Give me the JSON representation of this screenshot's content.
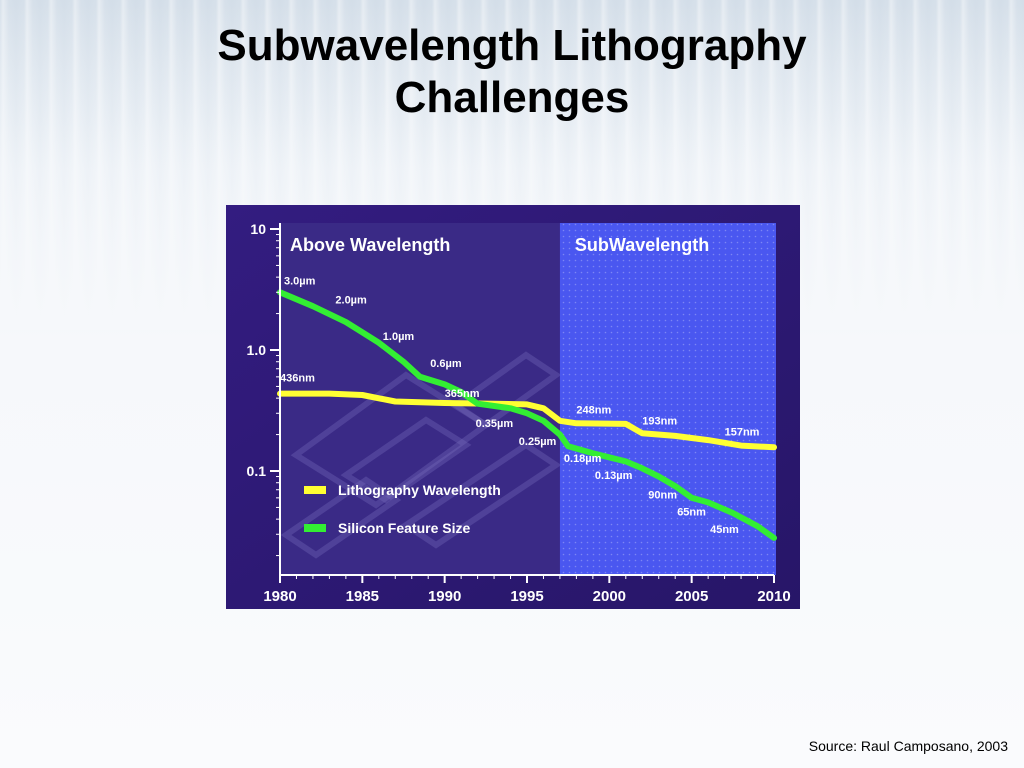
{
  "slide": {
    "title_line1": "Subwavelength Lithography",
    "title_line2": "Challenges",
    "source": "Source: Raul Camposano, 2003"
  },
  "colors": {
    "panel_bg": "#2f1a78",
    "plot_bg": "#3a2a86",
    "subwavelength_region": "#4a57f0",
    "lithography_line": "#ffff33",
    "silicon_line": "#33ee33",
    "text": "#ffffff"
  },
  "chart_data": {
    "type": "line",
    "x_type": "year",
    "y_scale": "log",
    "xlim": [
      1980,
      2010
    ],
    "ylim": [
      0.02,
      10
    ],
    "x_ticks": [
      "1980",
      "1985",
      "1990",
      "1995",
      "2000",
      "2005",
      "2010"
    ],
    "y_ticks": [
      {
        "value": 10,
        "label": "10"
      },
      {
        "value": 1,
        "label": "1.0"
      },
      {
        "value": 0.1,
        "label": "0.1"
      }
    ],
    "regions": [
      {
        "label": "Above Wavelength",
        "x_start": 1980,
        "x_end": 1997
      },
      {
        "label": "SubWavelength",
        "x_start": 1997,
        "x_end": 2010
      }
    ],
    "legend": {
      "placement": "bottom-left",
      "items": [
        "Lithography Wavelength",
        "Silicon Feature Size"
      ]
    },
    "series": [
      {
        "name": "Lithography Wavelength",
        "color": "#ffff33",
        "points": [
          [
            1980,
            0.436
          ],
          [
            1983,
            0.436
          ],
          [
            1985,
            0.425
          ],
          [
            1987,
            0.375
          ],
          [
            1990,
            0.365
          ],
          [
            1993,
            0.36
          ],
          [
            1995,
            0.355
          ],
          [
            1996,
            0.33
          ],
          [
            1997,
            0.26
          ],
          [
            1998,
            0.248
          ],
          [
            2001,
            0.245
          ],
          [
            2002,
            0.205
          ],
          [
            2004,
            0.195
          ],
          [
            2006,
            0.18
          ],
          [
            2008,
            0.162
          ],
          [
            2010,
            0.157
          ]
        ],
        "labels": [
          {
            "x": 1980,
            "y": 0.436,
            "text": "436nm"
          },
          {
            "x": 1990,
            "y": 0.365,
            "text": "365nm"
          },
          {
            "x": 1998,
            "y": 0.248,
            "text": "248nm"
          },
          {
            "x": 2002,
            "y": 0.193,
            "text": "193nm"
          },
          {
            "x": 2007,
            "y": 0.157,
            "text": "157nm"
          }
        ]
      },
      {
        "name": "Silicon Feature Size",
        "color": "#33ee33",
        "points": [
          [
            1980,
            3.0
          ],
          [
            1982,
            2.3
          ],
          [
            1984,
            1.7
          ],
          [
            1985,
            1.4
          ],
          [
            1986,
            1.15
          ],
          [
            1987.5,
            0.8
          ],
          [
            1988.5,
            0.6
          ],
          [
            1990,
            0.52
          ],
          [
            1991,
            0.45
          ],
          [
            1992,
            0.36
          ],
          [
            1994,
            0.33
          ],
          [
            1995,
            0.3
          ],
          [
            1996,
            0.26
          ],
          [
            1997,
            0.2
          ],
          [
            1997.5,
            0.16
          ],
          [
            1999,
            0.14
          ],
          [
            2001,
            0.12
          ],
          [
            2002,
            0.105
          ],
          [
            2003,
            0.09
          ],
          [
            2004,
            0.075
          ],
          [
            2005,
            0.06
          ],
          [
            2006,
            0.055
          ],
          [
            2007.5,
            0.045
          ],
          [
            2009,
            0.035
          ],
          [
            2010,
            0.028
          ]
        ],
        "labels": [
          {
            "x": 1980,
            "y": 3.0,
            "text": "3.0µm"
          },
          {
            "x": 1983,
            "y": 2.0,
            "text": "2.0µm"
          },
          {
            "x": 1986,
            "y": 1.0,
            "text": "1.0µm"
          },
          {
            "x": 1989,
            "y": 0.6,
            "text": "0.6µm"
          },
          {
            "x": 1992,
            "y": 0.35,
            "text": "0.35µm"
          },
          {
            "x": 1994.5,
            "y": 0.25,
            "text": "0.25µm"
          },
          {
            "x": 1997,
            "y": 0.18,
            "text": "0.18µm"
          },
          {
            "x": 1999,
            "y": 0.13,
            "text": "0.13µm"
          },
          {
            "x": 2002,
            "y": 0.09,
            "text": "90nm"
          },
          {
            "x": 2004,
            "y": 0.065,
            "text": "65nm"
          },
          {
            "x": 2006,
            "y": 0.045,
            "text": "45nm"
          }
        ]
      }
    ]
  }
}
